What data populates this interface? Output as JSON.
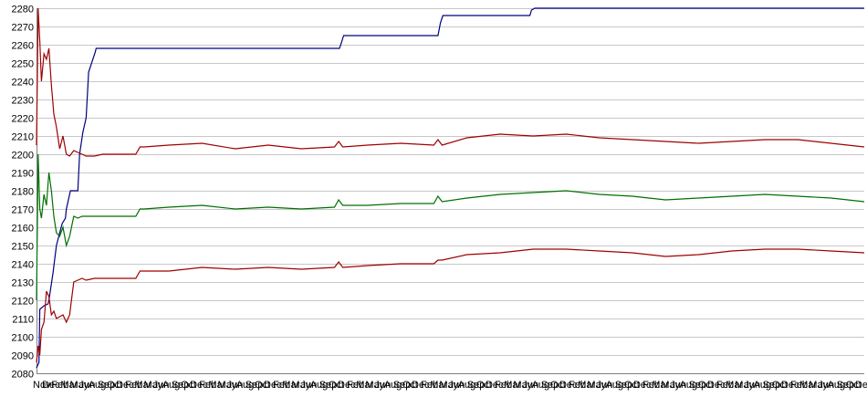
{
  "chart_data": {
    "type": "line",
    "title": "",
    "xlabel": "",
    "ylabel": "",
    "ylim": [
      2080,
      2280
    ],
    "yticks": [
      2080,
      2090,
      2100,
      2110,
      2120,
      2130,
      2140,
      2150,
      2160,
      2170,
      2180,
      2190,
      2200,
      2210,
      2220,
      2230,
      2240,
      2250,
      2260,
      2270,
      2280
    ],
    "xlim": [
      0,
      100
    ],
    "grid": "horizontal",
    "legend": "none",
    "xtick_labels": [
      "Nov",
      "Dec",
      "Feb",
      "Mar",
      "May",
      "Jun",
      "Aug",
      "Sep",
      "Oct",
      "Dec",
      "Feb",
      "Mar",
      "May",
      "Jun",
      "Aug",
      "Sep",
      "Oct",
      "Dec",
      "Feb",
      "Mar",
      "May",
      "Jun",
      "Aug",
      "Sep",
      "Oct",
      "Dec",
      "Feb",
      "Mar",
      "May",
      "Jun",
      "Aug",
      "Sep",
      "Oct",
      "Dec",
      "Feb",
      "Mar",
      "May",
      "Jun",
      "Aug",
      "Sep",
      "Oct",
      "Dec",
      "Feb",
      "Mar",
      "May",
      "Jun",
      "Aug",
      "Sep",
      "Oct",
      "Dec",
      "Feb",
      "Mar",
      "May",
      "Jun",
      "Aug",
      "Sep",
      "Oct",
      "Dec",
      "Feb",
      "Mar",
      "May",
      "Jun",
      "Aug",
      "Sep",
      "Oct",
      "Dec",
      "Feb",
      "Mar",
      "May",
      "Jun",
      "Aug",
      "Sep",
      "Oct",
      "Dec",
      "Feb",
      "Mar",
      "May",
      "Jun",
      "Aug",
      "Sep",
      "Oct",
      "Dec",
      "Feb",
      "Mar",
      "May",
      "Jun",
      "Aug",
      "Sep",
      "Oct",
      "Dec"
    ],
    "series": [
      {
        "color": "#000080",
        "x": [
          0,
          0.3,
          0.4,
          0.9,
          1.4,
          1.5,
          2.0,
          2.4,
          3.1,
          3.5,
          3.6,
          4.1,
          4.6,
          5.0,
          5.2,
          5.6,
          6.0,
          6.3,
          7.1,
          7.2,
          36.6,
          36.9,
          37.1,
          48.5,
          48.8,
          49.1,
          59.6,
          59.8,
          60.2,
          100
        ],
        "y": [
          2083,
          2086,
          2115,
          2117,
          2118,
          2120,
          2135,
          2150,
          2162,
          2165,
          2170,
          2180,
          2180,
          2180,
          2200,
          2212,
          2220,
          2245,
          2256,
          2258,
          2258,
          2262,
          2265,
          2265,
          2272,
          2276,
          2276,
          2279,
          2280,
          2280
        ]
      },
      {
        "color": "#a00000",
        "x": [
          0,
          0.2,
          0.4,
          0.6,
          0.9,
          1.2,
          1.5,
          1.8,
          2.1,
          2.4,
          2.8,
          3.2,
          3.6,
          4.0,
          4.5,
          5.0,
          5.5,
          6.0,
          7.0,
          8.0,
          10.0,
          12.0,
          12.5,
          13.0,
          16.0,
          20.0,
          24.0,
          28.0,
          32.0,
          36.0,
          36.5,
          37.0,
          40.0,
          44.0,
          48.0,
          48.5,
          49.0,
          52.0,
          56.0,
          60.0,
          64.0,
          68.0,
          72.0,
          76.0,
          80.0,
          84.0,
          88.0,
          92.0,
          96.0,
          100
        ],
        "y": [
          2205,
          2280,
          2262,
          2240,
          2255,
          2252,
          2258,
          2238,
          2222,
          2215,
          2203,
          2210,
          2200,
          2199,
          2202,
          2201,
          2200,
          2199,
          2199,
          2200,
          2200,
          2200,
          2204,
          2204,
          2205,
          2206,
          2203,
          2205,
          2203,
          2204,
          2207,
          2204,
          2205,
          2206,
          2205,
          2208,
          2205,
          2209,
          2211,
          2210,
          2211,
          2209,
          2208,
          2207,
          2206,
          2207,
          2208,
          2208,
          2206,
          2204
        ]
      },
      {
        "color": "#007000",
        "x": [
          0,
          0.2,
          0.4,
          0.6,
          0.9,
          1.2,
          1.5,
          1.8,
          2.1,
          2.4,
          2.8,
          3.2,
          3.6,
          4.0,
          4.5,
          5.0,
          5.5,
          6.0,
          7.0,
          8.0,
          10.0,
          12.0,
          12.5,
          13.0,
          16.0,
          20.0,
          24.0,
          28.0,
          32.0,
          36.0,
          36.5,
          37.0,
          40.0,
          44.0,
          48.0,
          48.5,
          49.0,
          52.0,
          56.0,
          60.0,
          64.0,
          68.0,
          72.0,
          76.0,
          80.0,
          84.0,
          88.0,
          92.0,
          96.0,
          100
        ],
        "y": [
          2120,
          2200,
          2170,
          2165,
          2178,
          2172,
          2190,
          2180,
          2166,
          2157,
          2155,
          2160,
          2150,
          2155,
          2166,
          2165,
          2166,
          2166,
          2166,
          2166,
          2166,
          2166,
          2170,
          2170,
          2171,
          2172,
          2170,
          2171,
          2170,
          2171,
          2175,
          2172,
          2172,
          2173,
          2173,
          2177,
          2174,
          2176,
          2178,
          2179,
          2180,
          2178,
          2177,
          2175,
          2176,
          2177,
          2178,
          2177,
          2176,
          2174
        ]
      },
      {
        "color": "#a00000",
        "x": [
          0,
          0.2,
          0.4,
          0.6,
          0.9,
          1.2,
          1.5,
          1.8,
          2.1,
          2.4,
          2.8,
          3.2,
          3.6,
          4.0,
          4.5,
          5.0,
          5.5,
          6.0,
          7.0,
          8.0,
          10.0,
          12.0,
          12.5,
          13.0,
          16.0,
          20.0,
          24.0,
          28.0,
          32.0,
          36.0,
          36.5,
          37.0,
          40.0,
          44.0,
          48.0,
          48.5,
          49.0,
          52.0,
          56.0,
          60.0,
          64.0,
          68.0,
          72.0,
          76.0,
          80.0,
          84.0,
          88.0,
          92.0,
          96.0,
          100
        ],
        "y": [
          2086,
          2095,
          2090,
          2104,
          2108,
          2125,
          2122,
          2112,
          2114,
          2110,
          2111,
          2112,
          2108,
          2112,
          2130,
          2131,
          2132,
          2131,
          2132,
          2132,
          2132,
          2132,
          2136,
          2136,
          2136,
          2138,
          2137,
          2138,
          2137,
          2138,
          2141,
          2138,
          2139,
          2140,
          2140,
          2142,
          2142,
          2145,
          2146,
          2148,
          2148,
          2147,
          2146,
          2144,
          2145,
          2147,
          2148,
          2148,
          2147,
          2146
        ]
      }
    ]
  }
}
